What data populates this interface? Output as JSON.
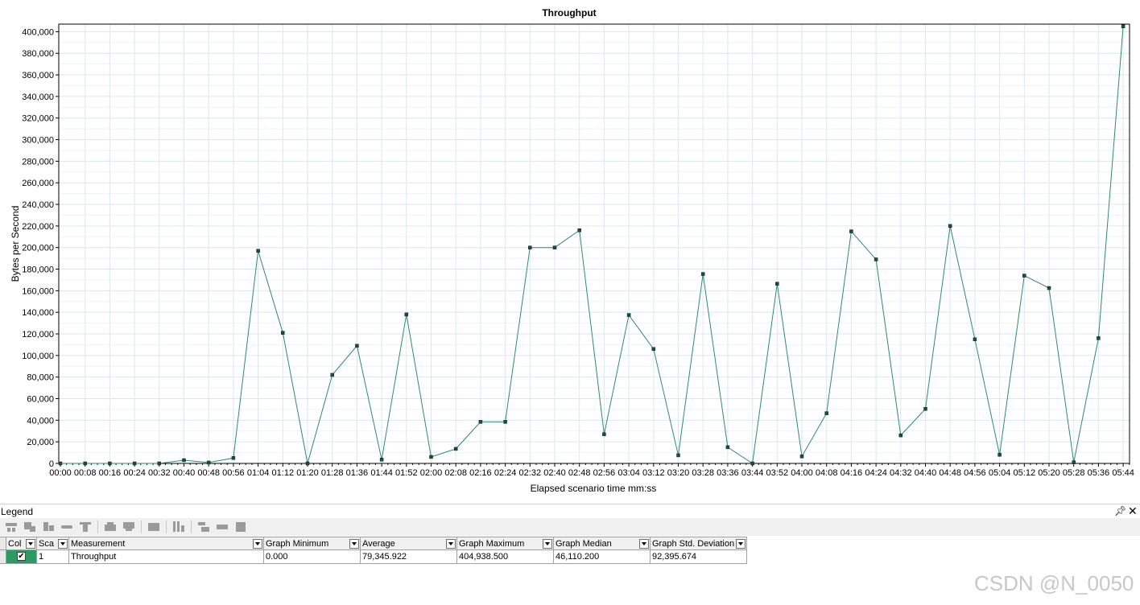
{
  "chart_data": {
    "type": "line",
    "title": "Throughput",
    "xlabel": "Elapsed scenario time mm:ss",
    "ylabel": "Bytes per Second",
    "ylim": [
      0,
      405000
    ],
    "yticks": [
      0,
      20000,
      40000,
      60000,
      80000,
      100000,
      120000,
      140000,
      160000,
      180000,
      200000,
      220000,
      240000,
      260000,
      280000,
      300000,
      320000,
      340000,
      360000,
      380000,
      400000
    ],
    "ytick_labels": [
      "0",
      "20,000",
      "40,000",
      "60,000",
      "80,000",
      "100,000",
      "120,000",
      "140,000",
      "160,000",
      "180,000",
      "200,000",
      "220,000",
      "240,000",
      "260,000",
      "280,000",
      "300,000",
      "320,000",
      "340,000",
      "360,000",
      "380,000",
      "400,000"
    ],
    "xticks": [
      "00:00",
      "00:08",
      "00:16",
      "00:24",
      "00:32",
      "00:40",
      "00:48",
      "00:56",
      "01:04",
      "01:12",
      "01:20",
      "01:28",
      "01:36",
      "01:44",
      "01:52",
      "02:00",
      "02:08",
      "02:16",
      "02:24",
      "02:32",
      "02:40",
      "02:48",
      "02:56",
      "03:04",
      "03:12",
      "03:20",
      "03:28",
      "03:36",
      "03:44",
      "03:52",
      "04:00",
      "04:08",
      "04:16",
      "04:24",
      "04:32",
      "04:40",
      "04:48",
      "04:56",
      "05:04",
      "05:12",
      "05:20",
      "05:28",
      "05:36",
      "05:44"
    ],
    "grid": true,
    "series": [
      {
        "name": "Throughput",
        "color": "#2e8b6e",
        "x": [
          "00:00",
          "00:08",
          "00:16",
          "00:24",
          "00:32",
          "00:40",
          "00:48",
          "00:56",
          "01:04",
          "01:12",
          "01:20",
          "01:28",
          "01:36",
          "01:44",
          "01:52",
          "02:00",
          "02:08",
          "02:16",
          "02:24",
          "02:32",
          "02:40",
          "02:48",
          "02:56",
          "03:04",
          "03:12",
          "03:20",
          "03:28",
          "03:36",
          "03:44",
          "03:52",
          "04:00",
          "04:08",
          "04:16",
          "04:24",
          "04:32",
          "04:40",
          "04:48",
          "04:56",
          "05:04",
          "05:12",
          "05:20",
          "05:28",
          "05:36",
          "05:44"
        ],
        "values": [
          0,
          0,
          0,
          0,
          0,
          3000,
          800,
          5000,
          197000,
          121000,
          0,
          82000,
          109000,
          3500,
          138000,
          6000,
          13500,
          38500,
          38500,
          200000,
          200000,
          216000,
          27000,
          137500,
          106000,
          7500,
          175500,
          15000,
          0,
          166500,
          6500,
          46500,
          215000,
          189000,
          26000,
          50500,
          220000,
          115000,
          8000,
          174000,
          162500,
          1000,
          116000,
          405000
        ]
      }
    ]
  },
  "legend": {
    "title": "Legend",
    "pin_icon": "pin-icon",
    "close_icon": "close-icon",
    "toolbar_icons": [
      "show-only-selected-icon",
      "show-all-icon",
      "hide-icon",
      "link-icon",
      "filter-icon",
      "move-up-icon",
      "move-down-icon",
      "configure-icon",
      "columns-icon",
      "expand-icon",
      "collapse-icon",
      "fit-icon"
    ],
    "columns": [
      "Col",
      "Sca",
      "Measurement",
      "Graph Minimum",
      "Average",
      "Graph Maximum",
      "Graph Median",
      "Graph Std. Deviation"
    ],
    "rows": [
      {
        "color": "#2e9a63",
        "checked": true,
        "scale": "1",
        "measurement": "Throughput",
        "graph_minimum": "0.000",
        "average": "79,345.922",
        "graph_maximum": "404,938.500",
        "graph_median": "46,110.200",
        "graph_std_deviation": "92,395.674"
      }
    ]
  },
  "watermark": "CSDN @N_0050"
}
